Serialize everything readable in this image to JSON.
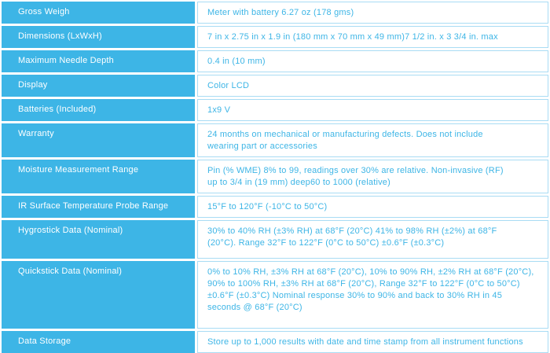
{
  "table": {
    "rows": [
      {
        "label": "Gross Weigh",
        "value": "Meter with battery 6.27 oz (178 gms)"
      },
      {
        "label": "Dimensions (LxWxH)",
        "value": "7 in x 2.75 in x 1.9 in (180 mm x 70 mm x 49 mm)7 1/2 in. x 3 3/4 in. max"
      },
      {
        "label": "Maximum Needle Depth",
        "value": "0.4 in (10 mm)"
      },
      {
        "label": "Display",
        "value": "Color LCD"
      },
      {
        "label": "Batteries (Included)",
        "value": "1x9 V"
      },
      {
        "label": "Warranty",
        "value": "24 months on mechanical or manufacturing defects. Does not include\nwearing part or accessories"
      },
      {
        "label": "Moisture Measurement Range",
        "value": "Pin (% WME) 8% to 99, readings over 30% are relative. Non-invasive (RF)\nup to 3/4 in (19 mm) deep60 to 1000 (relative)"
      },
      {
        "label": "IR Surface Temperature Probe Range",
        "value": "15°F to 120°F (-10°C to 50°C)"
      },
      {
        "label": "Hygrostick Data (Nominal)",
        "value": "30% to 40% RH (±3% RH) at 68°F (20°C) 41% to 98% RH (±2%) at 68°F\n(20°C). Range 32°F to 122°F (0°C to 50°C) ±0.6°F (±0.3°C)"
      },
      {
        "label": "Quickstick Data (Nominal)",
        "value": "0% to 10% RH, ±3% RH at 68°F (20°C), 10% to 90% RH, ±2% RH at 68°F (20°C),\n90% to 100% RH, ±3% RH at 68°F (20°C), Range 32°F to 122°F (0°C to 50°C)\n±0.6°F (±0.3°C) Nominal response 30% to 90% and back to 30% RH in 45\nseconds @ 68°F (20°C)"
      },
      {
        "label": "Data Storage",
        "value": "Store up to 1,000 results with date and time stamp from all instrument functions"
      }
    ],
    "colors": {
      "cell_blue": "#3db5e6",
      "label_text": "#ffffff",
      "value_text": "#3db5e6",
      "value_border": "#a9dcf4",
      "value_bg": "#ffffff",
      "page_bg": "#ffffff"
    }
  }
}
